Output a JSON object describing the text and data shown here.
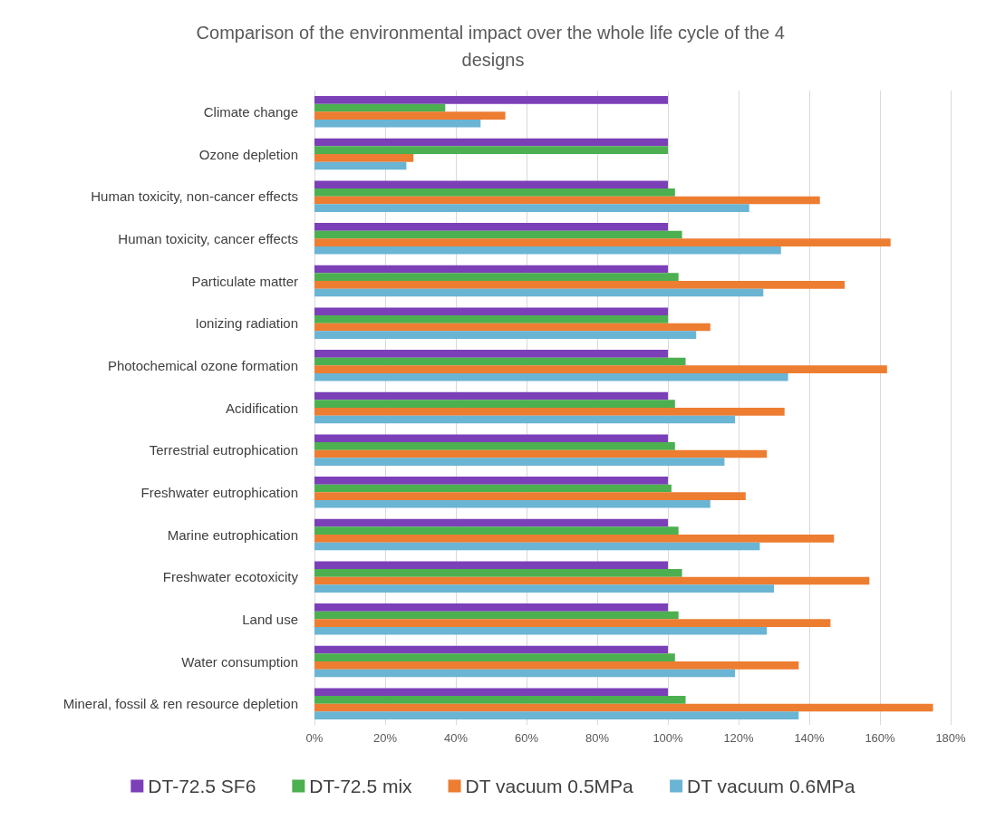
{
  "chart_data": {
    "type": "bar",
    "orientation": "horizontal",
    "title": "Comparison of the environmental impact over the whole life cycle of the 4 designs",
    "categories": [
      "Climate change",
      "Ozone depletion",
      "Human toxicity, non-cancer effects",
      "Human toxicity, cancer effects",
      "Particulate matter",
      "Ionizing radiation",
      "Photochemical ozone formation",
      "Acidification",
      "Terrestrial eutrophication",
      "Freshwater eutrophication",
      "Marine eutrophication",
      "Freshwater ecotoxicity",
      "Land use",
      "Water consumption",
      "Mineral, fossil & ren resource depletion"
    ],
    "series": [
      {
        "name": "DT-72.5 SF6",
        "color": "#7b3fb8",
        "values": [
          100,
          100,
          100,
          100,
          100,
          100,
          100,
          100,
          100,
          100,
          100,
          100,
          100,
          100,
          100
        ]
      },
      {
        "name": "DT-72.5 mix",
        "color": "#4caf50",
        "values": [
          37,
          100,
          102,
          104,
          103,
          100,
          105,
          102,
          102,
          101,
          103,
          104,
          103,
          102,
          105
        ]
      },
      {
        "name": "DT vacuum 0.5MPa",
        "color": "#ed7d31",
        "values": [
          54,
          28,
          143,
          163,
          150,
          112,
          162,
          133,
          128,
          122,
          147,
          157,
          146,
          137,
          175
        ]
      },
      {
        "name": "DT vacuum 0.6MPa",
        "color": "#6ab4d4",
        "values": [
          47,
          26,
          123,
          132,
          127,
          108,
          134,
          119,
          116,
          112,
          126,
          130,
          128,
          119,
          137
        ]
      }
    ],
    "xlim": [
      0,
      180
    ],
    "xticks": [
      {
        "value": 0,
        "label": "0%"
      },
      {
        "value": 20,
        "label": "20%"
      },
      {
        "value": 40,
        "label": "40%"
      },
      {
        "value": 60,
        "label": "60%"
      },
      {
        "value": 80,
        "label": "80%"
      },
      {
        "value": 100,
        "label": "100%"
      },
      {
        "value": 120,
        "label": "120%"
      },
      {
        "value": 140,
        "label": "140%"
      },
      {
        "value": 160,
        "label": "160%"
      },
      {
        "value": 180,
        "label": "180%"
      }
    ],
    "grid": "x",
    "legend": "bottom"
  }
}
